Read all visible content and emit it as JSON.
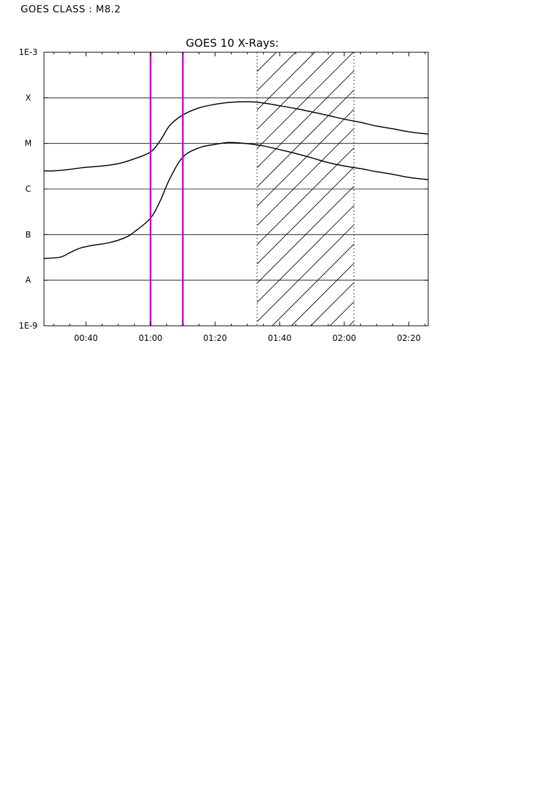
{
  "header": {
    "goes_class_label": "GOES CLASS : M8.2"
  },
  "chart_data": {
    "type": "line",
    "title": "GOES 10 X-Rays:",
    "xlabel": "",
    "ylabel": "",
    "x_unit": "UT time (HH:MM)",
    "xlim": [
      "00:27",
      "02:26"
    ],
    "x_ticks": [
      "00:40",
      "01:00",
      "01:20",
      "01:40",
      "02:00",
      "02:20"
    ],
    "y_scale": "log",
    "ylim": [
      1e-09,
      0.001
    ],
    "y_ticks": [
      {
        "label": "1E-9",
        "value": 1e-09
      },
      {
        "label": "A",
        "value": 1e-08
      },
      {
        "label": "B",
        "value": 1e-07
      },
      {
        "label": "C",
        "value": 1e-06
      },
      {
        "label": "M",
        "value": 1e-05
      },
      {
        "label": "X",
        "value": 0.0001
      },
      {
        "label": "1E-3",
        "value": 0.001
      }
    ],
    "grid": "horizontal at class boundaries",
    "series": [
      {
        "color": "#000000",
        "points": [
          [
            "00:27",
            2.5e-06
          ],
          [
            "00:30",
            2.5e-06
          ],
          [
            "00:35",
            2.7e-06
          ],
          [
            "00:40",
            3e-06
          ],
          [
            "00:45",
            3.2e-06
          ],
          [
            "00:50",
            3.6e-06
          ],
          [
            "00:55",
            4.6e-06
          ],
          [
            "01:00",
            6.5e-06
          ],
          [
            "01:03",
            1.15e-05
          ],
          [
            "01:06",
            2.5e-05
          ],
          [
            "01:10",
            4.2e-05
          ],
          [
            "01:15",
            6e-05
          ],
          [
            "01:20",
            7.2e-05
          ],
          [
            "01:25",
            8e-05
          ],
          [
            "01:31",
            8.2e-05
          ],
          [
            "01:35",
            7.7e-05
          ],
          [
            "01:40",
            6.7e-05
          ],
          [
            "01:45",
            5.8e-05
          ],
          [
            "01:50",
            4.9e-05
          ],
          [
            "01:55",
            4.1e-05
          ],
          [
            "02:00",
            3.4e-05
          ],
          [
            "02:05",
            2.9e-05
          ],
          [
            "02:10",
            2.4e-05
          ],
          [
            "02:15",
            2.1e-05
          ],
          [
            "02:20",
            1.8e-05
          ],
          [
            "02:26",
            1.6e-05
          ]
        ]
      },
      {
        "color": "#000000",
        "points": [
          [
            "00:27",
            3e-08
          ],
          [
            "00:32",
            3.2e-08
          ],
          [
            "00:35",
            4e-08
          ],
          [
            "00:38",
            5e-08
          ],
          [
            "00:42",
            5.8e-08
          ],
          [
            "00:47",
            6.6e-08
          ],
          [
            "00:52",
            8.5e-08
          ],
          [
            "00:55",
            1.15e-07
          ],
          [
            "01:00",
            2.3e-07
          ],
          [
            "01:03",
            5.5e-07
          ],
          [
            "01:06",
            1.7e-06
          ],
          [
            "01:10",
            5e-06
          ],
          [
            "01:15",
            8e-06
          ],
          [
            "01:20",
            9.5e-06
          ],
          [
            "01:24",
            1.05e-05
          ],
          [
            "01:28",
            1.02e-05
          ],
          [
            "01:32",
            9.5e-06
          ],
          [
            "01:36",
            8.5e-06
          ],
          [
            "01:40",
            7.3e-06
          ],
          [
            "01:45",
            6e-06
          ],
          [
            "01:50",
            4.8e-06
          ],
          [
            "01:55",
            3.8e-06
          ],
          [
            "02:00",
            3.2e-06
          ],
          [
            "02:05",
            2.8e-06
          ],
          [
            "02:10",
            2.4e-06
          ],
          [
            "02:15",
            2.1e-06
          ],
          [
            "02:20",
            1.8e-06
          ],
          [
            "02:26",
            1.6e-06
          ]
        ]
      }
    ],
    "markers": [
      {
        "time": "01:00",
        "color": "#cc00cc",
        "style": "solid"
      },
      {
        "time": "01:10",
        "color": "#cc00cc",
        "style": "solid"
      }
    ],
    "hatched_interval": {
      "start": "01:33",
      "end": "02:03",
      "fill": "diagonal hatch",
      "border": "dotted"
    }
  }
}
